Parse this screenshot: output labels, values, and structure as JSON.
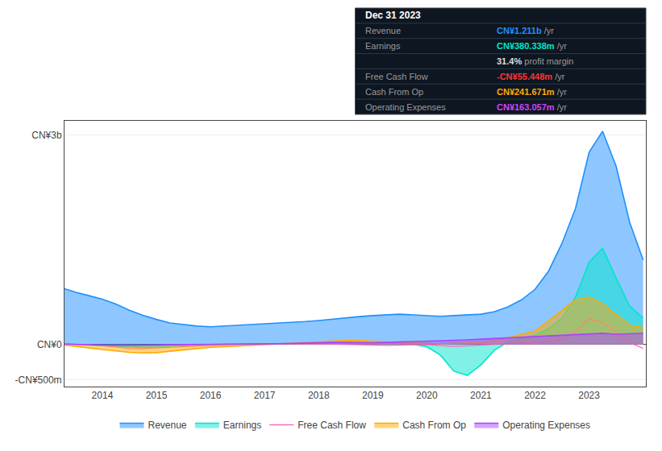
{
  "chart_data": {
    "type": "line",
    "x": [
      2013.3,
      2013.5,
      2013.75,
      2014.0,
      2014.25,
      2014.5,
      2014.75,
      2015.0,
      2015.25,
      2015.5,
      2015.75,
      2016.0,
      2016.25,
      2016.5,
      2016.75,
      2017.0,
      2017.25,
      2017.5,
      2017.75,
      2018.0,
      2018.25,
      2018.5,
      2018.75,
      2019.0,
      2019.25,
      2019.5,
      2019.75,
      2020.0,
      2020.25,
      2020.5,
      2020.75,
      2021.0,
      2021.25,
      2021.5,
      2021.75,
      2022.0,
      2022.25,
      2022.5,
      2022.75,
      2023.0,
      2023.25,
      2023.5,
      2023.75,
      2024.0
    ],
    "xlim": [
      2013.3,
      2024.05
    ],
    "xticks": [
      2014,
      2015,
      2016,
      2017,
      2018,
      2019,
      2020,
      2021,
      2022,
      2023
    ],
    "ylim": [
      -600,
      3200
    ],
    "yticks": [
      {
        "value": 3000,
        "label": "CN¥3b"
      },
      {
        "value": 0,
        "label": "CN¥0"
      },
      {
        "value": -500,
        "label": "-CN¥500m"
      }
    ],
    "grid": "y",
    "legend": "bottom",
    "series": [
      {
        "name": "Revenue",
        "color": "#1e90ff",
        "type": "area",
        "values": [
          800,
          750,
          700,
          650,
          580,
          490,
          420,
          360,
          310,
          285,
          265,
          255,
          265,
          275,
          285,
          295,
          305,
          315,
          330,
          345,
          365,
          385,
          400,
          415,
          425,
          435,
          425,
          415,
          405,
          415,
          425,
          435,
          470,
          540,
          640,
          790,
          1050,
          1450,
          1950,
          2750,
          3050,
          2550,
          1750,
          1211
        ]
      },
      {
        "name": "Earnings",
        "color": "#00e5cc",
        "type": "area",
        "values": [
          10,
          5,
          -5,
          -15,
          -25,
          -35,
          -40,
          -35,
          -25,
          -12,
          -2,
          5,
          8,
          10,
          12,
          12,
          15,
          20,
          22,
          18,
          18,
          13,
          8,
          3,
          3,
          8,
          3,
          -30,
          -150,
          -380,
          -440,
          -290,
          -80,
          40,
          90,
          140,
          230,
          380,
          680,
          1180,
          1380,
          950,
          550,
          380
        ]
      },
      {
        "name": "Free Cash Flow",
        "color": "#ff69b4",
        "type": "line",
        "values": [
          15,
          8,
          -2,
          -15,
          -35,
          -55,
          -58,
          -48,
          -38,
          -28,
          -18,
          -8,
          -3,
          2,
          5,
          5,
          8,
          12,
          13,
          8,
          8,
          3,
          -3,
          -8,
          -12,
          -8,
          -3,
          0,
          -15,
          -25,
          -18,
          -8,
          0,
          8,
          18,
          28,
          45,
          75,
          180,
          370,
          320,
          170,
          30,
          -55
        ]
      },
      {
        "name": "Cash From Op",
        "color": "#ffaa00",
        "type": "area",
        "values": [
          -5,
          -25,
          -45,
          -70,
          -90,
          -110,
          -120,
          -115,
          -95,
          -75,
          -55,
          -38,
          -28,
          -18,
          -8,
          -2,
          8,
          18,
          28,
          38,
          48,
          58,
          58,
          48,
          38,
          28,
          28,
          18,
          8,
          18,
          28,
          38,
          58,
          95,
          145,
          195,
          340,
          490,
          640,
          680,
          580,
          430,
          280,
          242
        ]
      },
      {
        "name": "Operating Expenses",
        "color": "#aa44ff",
        "type": "area",
        "values": [
          8,
          3,
          -2,
          -8,
          -12,
          -13,
          -13,
          -8,
          -3,
          0,
          2,
          5,
          8,
          8,
          8,
          12,
          12,
          18,
          22,
          28,
          32,
          32,
          28,
          28,
          32,
          38,
          38,
          42,
          48,
          58,
          68,
          78,
          88,
          98,
          108,
          118,
          128,
          138,
          148,
          158,
          161,
          148,
          153,
          163
        ]
      }
    ],
    "annotations": [
      {
        "text": "Dec 31 2023"
      },
      {
        "label": "Revenue",
        "value": "CN¥1.211b",
        "unit": "/yr",
        "color": "#1e90ff"
      },
      {
        "label": "Earnings",
        "value": "CN¥380.338m",
        "unit": "/yr",
        "color": "#00e5cc"
      },
      {
        "value": "31.4%",
        "unit": "profit margin",
        "color": "#dddddd"
      },
      {
        "label": "Free Cash Flow",
        "value": "-CN¥55.448m",
        "unit": "/yr",
        "color": "#ff3333"
      },
      {
        "label": "Cash From Op",
        "value": "CN¥241.671m",
        "unit": "/yr",
        "color": "#ffaa00"
      },
      {
        "label": "Operating Expenses",
        "value": "CN¥163.057m",
        "unit": "/yr",
        "color": "#cc44ff"
      }
    ]
  }
}
